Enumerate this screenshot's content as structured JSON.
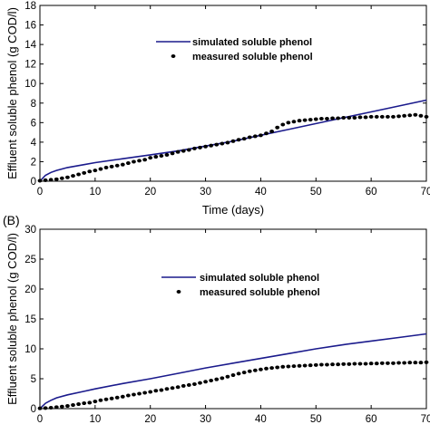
{
  "colors": {
    "simulated_line": "#1a1a8c",
    "measured_marker": "#000000",
    "axis": "#000000",
    "background": "#ffffff"
  },
  "chart_data": [
    {
      "type": "line",
      "panel_label": "",
      "title": "",
      "xlabel": "Time (days)",
      "ylabel": "Effluent soluble phenol (g COD/l)",
      "xlim": [
        0,
        70
      ],
      "ylim": [
        0,
        18
      ],
      "xticks": [
        "0",
        "10",
        "20",
        "30",
        "40",
        "50",
        "60",
        "70"
      ],
      "yticks": [
        "0",
        "2",
        "4",
        "6",
        "8",
        "10",
        "12",
        "14",
        "16",
        "18"
      ],
      "grid": false,
      "legend_position": "upper-center",
      "series": [
        {
          "name": "simulated soluble phenol",
          "style": "line",
          "x": [
            0,
            1,
            2,
            3,
            5,
            8,
            10,
            15,
            20,
            25,
            30,
            35,
            40,
            45,
            50,
            55,
            60,
            65,
            70
          ],
          "y": [
            0,
            0.6,
            0.9,
            1.1,
            1.4,
            1.7,
            1.9,
            2.3,
            2.7,
            3.1,
            3.6,
            4.1,
            4.7,
            5.3,
            5.9,
            6.5,
            7.1,
            7.7,
            8.3
          ]
        },
        {
          "name": "measured soluble phenol",
          "style": "marker",
          "x": [
            0,
            1,
            2,
            3,
            4,
            5,
            6,
            7,
            8,
            9,
            10,
            11,
            12,
            13,
            14,
            15,
            16,
            17,
            18,
            19,
            20,
            21,
            22,
            23,
            24,
            25,
            26,
            27,
            28,
            29,
            30,
            31,
            32,
            33,
            34,
            35,
            36,
            37,
            38,
            39,
            40,
            41,
            42,
            43,
            44,
            45,
            46,
            47,
            48,
            49,
            50,
            51,
            52,
            53,
            54,
            55,
            56,
            57,
            58,
            59,
            60,
            61,
            62,
            63,
            64,
            65,
            66,
            67,
            68,
            69,
            70
          ],
          "y": [
            0.05,
            0.1,
            0.15,
            0.2,
            0.3,
            0.4,
            0.55,
            0.7,
            0.85,
            1.0,
            1.1,
            1.25,
            1.4,
            1.5,
            1.6,
            1.7,
            1.85,
            2.0,
            2.1,
            2.2,
            2.4,
            2.5,
            2.6,
            2.7,
            2.85,
            3.0,
            3.1,
            3.2,
            3.35,
            3.45,
            3.55,
            3.65,
            3.75,
            3.85,
            3.95,
            4.1,
            4.25,
            4.35,
            4.5,
            4.6,
            4.7,
            4.9,
            5.1,
            5.5,
            5.8,
            6.0,
            6.1,
            6.2,
            6.25,
            6.3,
            6.35,
            6.4,
            6.4,
            6.45,
            6.45,
            6.5,
            6.5,
            6.5,
            6.55,
            6.55,
            6.6,
            6.6,
            6.6,
            6.6,
            6.6,
            6.65,
            6.7,
            6.75,
            6.8,
            6.7,
            6.6
          ]
        }
      ]
    },
    {
      "type": "line",
      "panel_label": "(B)",
      "title": "",
      "xlabel": "",
      "ylabel": "Effluent soluble phenol (g COD/l)",
      "xlim": [
        0,
        70
      ],
      "ylim": [
        0,
        30
      ],
      "xticks": [
        "0",
        "10",
        "20",
        "30",
        "40",
        "50",
        "60",
        "70"
      ],
      "yticks": [
        "0",
        "5",
        "10",
        "15",
        "20",
        "25",
        "30"
      ],
      "grid": false,
      "legend_position": "upper-center",
      "series": [
        {
          "name": "simulated soluble phenol",
          "style": "line",
          "x": [
            0,
            1,
            2,
            3,
            5,
            8,
            10,
            15,
            20,
            25,
            30,
            35,
            40,
            45,
            50,
            55,
            60,
            65,
            70
          ],
          "y": [
            0,
            0.9,
            1.4,
            1.8,
            2.3,
            2.9,
            3.3,
            4.2,
            5.0,
            5.9,
            6.8,
            7.6,
            8.4,
            9.2,
            10.0,
            10.7,
            11.3,
            11.9,
            12.5
          ]
        },
        {
          "name": "measured soluble phenol",
          "style": "marker",
          "x": [
            0,
            1,
            2,
            3,
            4,
            5,
            6,
            7,
            8,
            9,
            10,
            11,
            12,
            13,
            14,
            15,
            16,
            17,
            18,
            19,
            20,
            21,
            22,
            23,
            24,
            25,
            26,
            27,
            28,
            29,
            30,
            31,
            32,
            33,
            34,
            35,
            36,
            37,
            38,
            39,
            40,
            41,
            42,
            43,
            44,
            45,
            46,
            47,
            48,
            49,
            50,
            51,
            52,
            53,
            54,
            55,
            56,
            57,
            58,
            59,
            60,
            61,
            62,
            63,
            64,
            65,
            66,
            67,
            68,
            69,
            70
          ],
          "y": [
            0.05,
            0.1,
            0.15,
            0.25,
            0.35,
            0.45,
            0.6,
            0.75,
            0.9,
            1.0,
            1.2,
            1.4,
            1.55,
            1.7,
            1.85,
            2.0,
            2.2,
            2.35,
            2.5,
            2.65,
            2.8,
            3.0,
            3.1,
            3.3,
            3.45,
            3.6,
            3.8,
            3.95,
            4.1,
            4.3,
            4.5,
            4.7,
            4.9,
            5.1,
            5.35,
            5.6,
            5.85,
            6.05,
            6.25,
            6.4,
            6.55,
            6.7,
            6.8,
            6.9,
            7.0,
            7.05,
            7.1,
            7.15,
            7.2,
            7.25,
            7.3,
            7.35,
            7.35,
            7.4,
            7.4,
            7.45,
            7.45,
            7.5,
            7.5,
            7.5,
            7.55,
            7.55,
            7.6,
            7.6,
            7.6,
            7.65,
            7.65,
            7.7,
            7.7,
            7.7,
            7.75
          ]
        }
      ]
    }
  ]
}
